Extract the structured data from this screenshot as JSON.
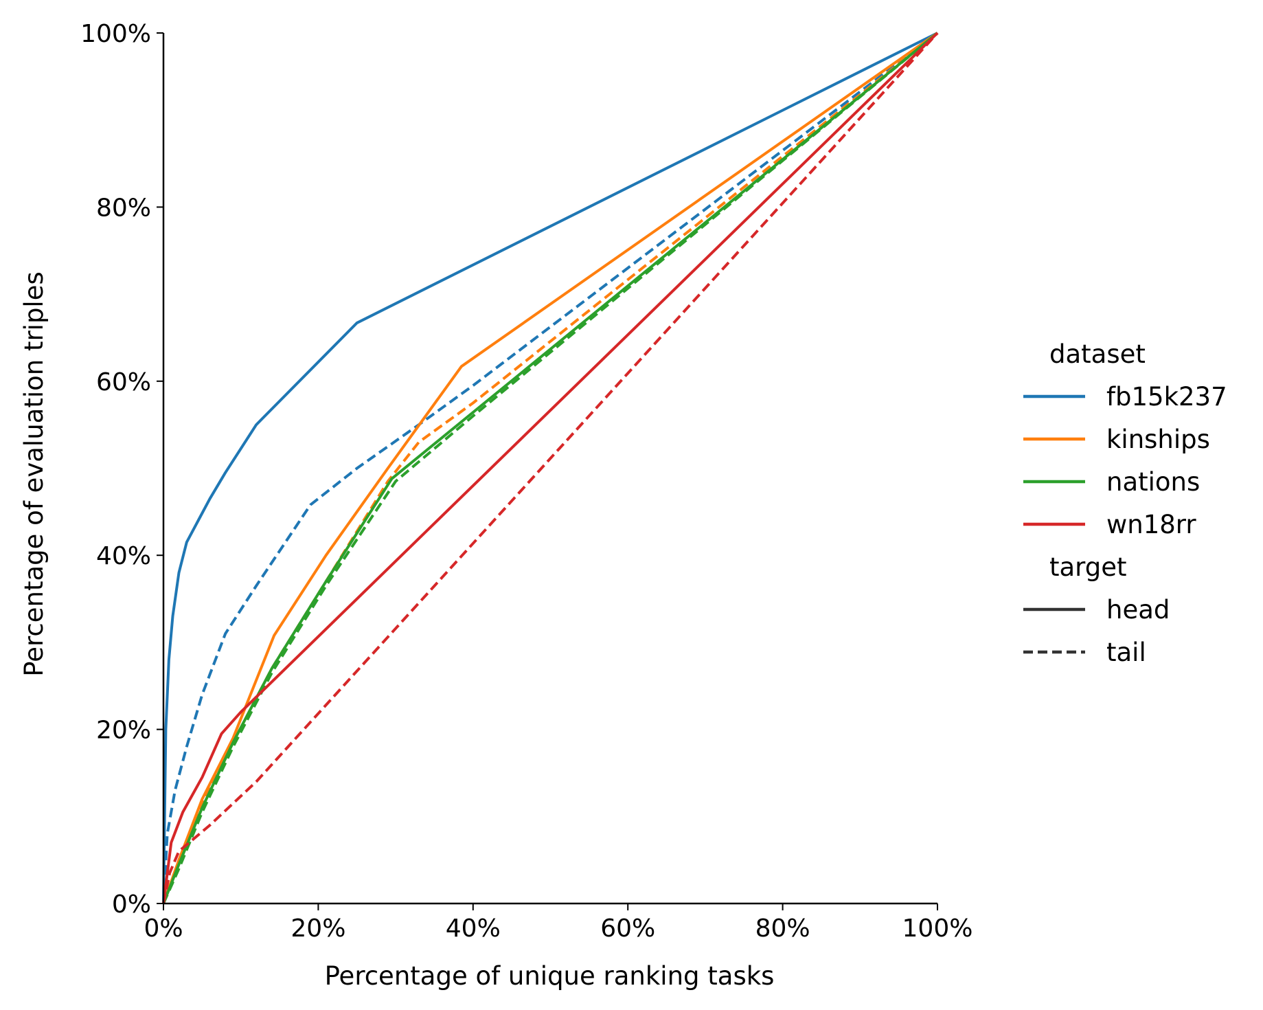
{
  "chart_data": {
    "type": "line",
    "xlabel": "Percentage of unique ranking tasks",
    "ylabel": "Percentage of evaluation triples",
    "xlim": [
      0,
      100
    ],
    "ylim": [
      0,
      100
    ],
    "x_ticks": [
      "0%",
      "20%",
      "40%",
      "60%",
      "80%",
      "100%"
    ],
    "y_ticks": [
      "0%",
      "20%",
      "40%",
      "60%",
      "80%",
      "100%"
    ],
    "x_tick_values": [
      0,
      20,
      40,
      60,
      80,
      100
    ],
    "y_tick_values": [
      0,
      20,
      40,
      60,
      80,
      100
    ],
    "grid": false,
    "legend": {
      "placement": "right",
      "hue_title": "dataset",
      "style_title": "target",
      "hue_entries": [
        {
          "label": "fb15k237",
          "color": "#1f77b4"
        },
        {
          "label": "kinships",
          "color": "#ff7f0e"
        },
        {
          "label": "nations",
          "color": "#2ca02c"
        },
        {
          "label": "wn18rr",
          "color": "#d62728"
        }
      ],
      "style_entries": [
        {
          "label": "head",
          "dash": "solid",
          "color": "#333333"
        },
        {
          "label": "tail",
          "dash": "dashed",
          "color": "#333333"
        }
      ]
    },
    "series": [
      {
        "dataset": "fb15k237",
        "target": "head",
        "color": "#1f77b4",
        "dash": "solid",
        "points": [
          [
            0,
            0
          ],
          [
            0.3,
            20
          ],
          [
            0.7,
            28
          ],
          [
            1.2,
            33
          ],
          [
            2,
            38
          ],
          [
            3,
            41.5
          ],
          [
            4.5,
            44
          ],
          [
            6,
            46.5
          ],
          [
            8,
            49.5
          ],
          [
            12,
            55
          ],
          [
            25,
            66.7
          ],
          [
            100,
            100
          ]
        ]
      },
      {
        "dataset": "fb15k237",
        "target": "tail",
        "color": "#1f77b4",
        "dash": "dashed",
        "points": [
          [
            0,
            0
          ],
          [
            0.5,
            8
          ],
          [
            1.5,
            13
          ],
          [
            3,
            18
          ],
          [
            5,
            24
          ],
          [
            8,
            31
          ],
          [
            12,
            36.5
          ],
          [
            19,
            45.8
          ],
          [
            25,
            50
          ],
          [
            33,
            55
          ],
          [
            40,
            59.5
          ],
          [
            100,
            100
          ]
        ]
      },
      {
        "dataset": "kinships",
        "target": "head",
        "color": "#ff7f0e",
        "dash": "solid",
        "points": [
          [
            0,
            0
          ],
          [
            2,
            5
          ],
          [
            5,
            12
          ],
          [
            9,
            19
          ],
          [
            14.3,
            30.8
          ],
          [
            21,
            40
          ],
          [
            29,
            50
          ],
          [
            38.5,
            61.7
          ],
          [
            100,
            100
          ]
        ]
      },
      {
        "dataset": "kinships",
        "target": "tail",
        "color": "#ff7f0e",
        "dash": "dashed",
        "points": [
          [
            0,
            0
          ],
          [
            2,
            5
          ],
          [
            5,
            11.5
          ],
          [
            9,
            18.5
          ],
          [
            14,
            27
          ],
          [
            21,
            37
          ],
          [
            29,
            48.5
          ],
          [
            33,
            53
          ],
          [
            40,
            57.5
          ],
          [
            100,
            100
          ]
        ]
      },
      {
        "dataset": "nations",
        "target": "head",
        "color": "#2ca02c",
        "dash": "solid",
        "points": [
          [
            0,
            0
          ],
          [
            2,
            4.5
          ],
          [
            5,
            11
          ],
          [
            9,
            18.5
          ],
          [
            14,
            27
          ],
          [
            21,
            37
          ],
          [
            29.5,
            48.8
          ],
          [
            100,
            100
          ]
        ]
      },
      {
        "dataset": "nations",
        "target": "tail",
        "color": "#2ca02c",
        "dash": "dashed",
        "points": [
          [
            0,
            0
          ],
          [
            2,
            4
          ],
          [
            5,
            10.5
          ],
          [
            9,
            18
          ],
          [
            14,
            26.5
          ],
          [
            21,
            36.5
          ],
          [
            30,
            48.5
          ],
          [
            40,
            56
          ],
          [
            100,
            100
          ]
        ]
      },
      {
        "dataset": "wn18rr",
        "target": "head",
        "color": "#d62728",
        "dash": "solid",
        "points": [
          [
            0,
            0
          ],
          [
            1,
            7
          ],
          [
            2.5,
            10.5
          ],
          [
            5,
            14.5
          ],
          [
            7.5,
            19.5
          ],
          [
            10,
            22
          ],
          [
            100,
            100
          ]
        ]
      },
      {
        "dataset": "wn18rr",
        "target": "tail",
        "color": "#d62728",
        "dash": "dashed",
        "points": [
          [
            0,
            0
          ],
          [
            0.8,
            3.5
          ],
          [
            2,
            6
          ],
          [
            6,
            9
          ],
          [
            12,
            14
          ],
          [
            100,
            100
          ]
        ]
      }
    ]
  }
}
